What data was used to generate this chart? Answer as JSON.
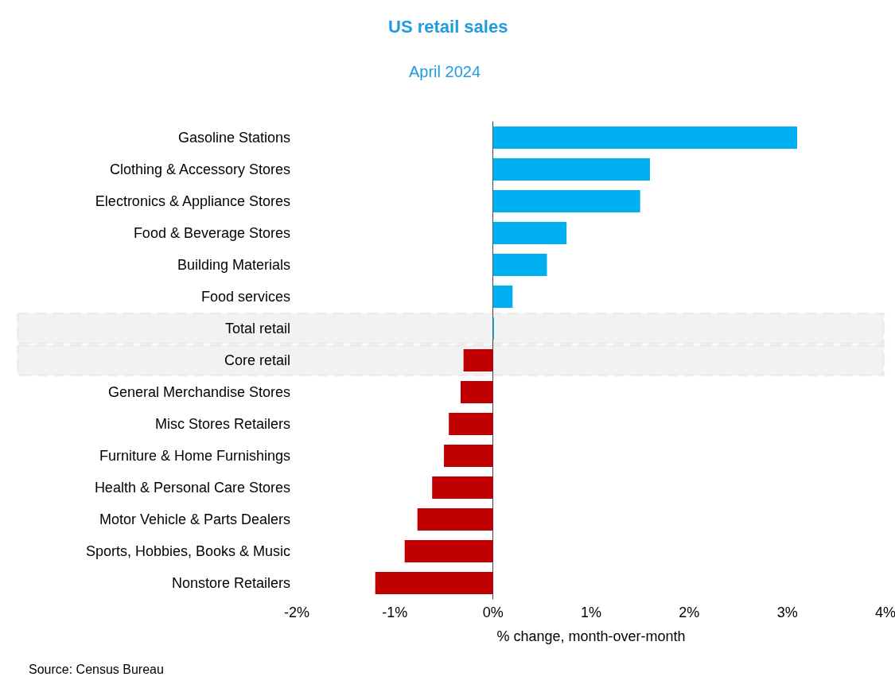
{
  "chart_data": {
    "type": "bar",
    "orientation": "horizontal",
    "title": "US retail sales",
    "subtitle": "April 2024",
    "xlabel": "% change, month-over-month",
    "categories": [
      "Gasoline Stations",
      "Clothing & Accessory Stores",
      "Electronics & Appliance Stores",
      "Food & Beverage Stores",
      "Building Materials",
      "Food services",
      "Total retail",
      "Core retail",
      "General Merchandise Stores",
      "Misc Stores Retailers",
      "Furniture & Home Furnishings",
      "Health & Personal Care Stores",
      "Motor Vehicle & Parts Dealers",
      "Sports, Hobbies, Books & Music",
      "Nonstore Retailers"
    ],
    "values": [
      3.1,
      1.6,
      1.5,
      0.75,
      0.55,
      0.2,
      0.01,
      -0.3,
      -0.33,
      -0.45,
      -0.5,
      -0.62,
      -0.77,
      -0.9,
      -1.2
    ],
    "colors": [
      "#00b0f0",
      "#00b0f0",
      "#00b0f0",
      "#00b0f0",
      "#00b0f0",
      "#00b0f0",
      "#00b0f0",
      "#c00000",
      "#c00000",
      "#c00000",
      "#c00000",
      "#c00000",
      "#c00000",
      "#c00000",
      "#c00000"
    ],
    "xlim": [
      -2,
      4
    ],
    "xticks": [
      {
        "value": -2,
        "label": "-2%"
      },
      {
        "value": -1,
        "label": "-1%"
      },
      {
        "value": 0,
        "label": "0%"
      },
      {
        "value": 1,
        "label": "1%"
      },
      {
        "value": 2,
        "label": "2%"
      },
      {
        "value": 3,
        "label": "3%"
      },
      {
        "value": 4,
        "label": "4%"
      }
    ],
    "bands": [
      {
        "axis": "y",
        "from": "Total retail",
        "to": "Total retail",
        "color": "#a6a6a6"
      },
      {
        "axis": "y",
        "from": "Core retail",
        "to": "Core retail",
        "color": "#a6a6a6"
      }
    ],
    "annotations": [
      "Source: Census Bureau"
    ]
  }
}
